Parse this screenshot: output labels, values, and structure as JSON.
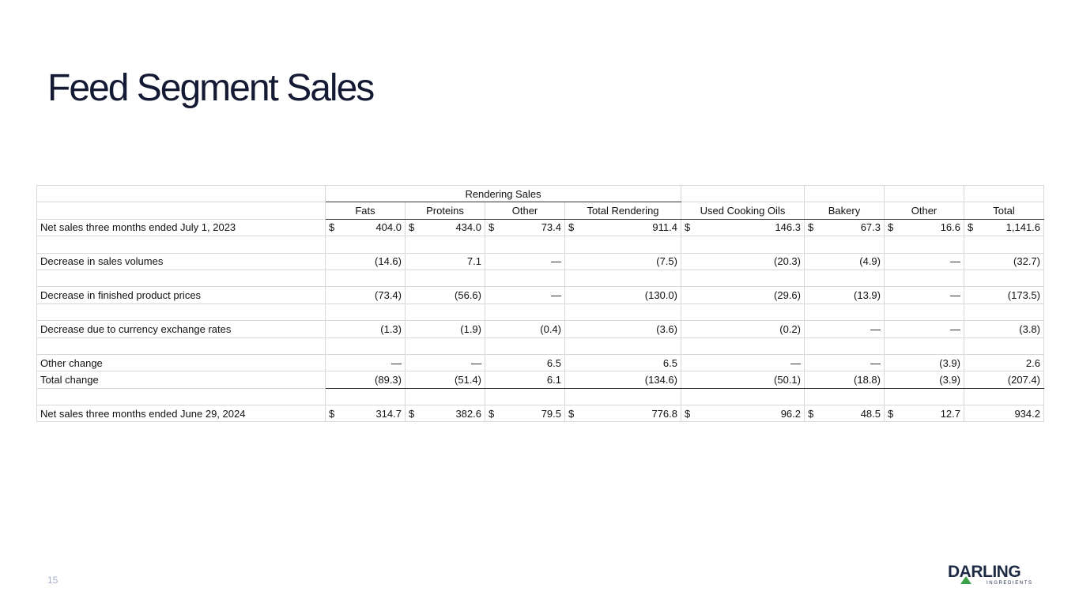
{
  "header": {
    "title": "Feed Segment Sales"
  },
  "table": {
    "group_header": "Rendering Sales",
    "columns": [
      "Fats",
      "Proteins",
      "Other",
      "Total Rendering",
      "Used Cooking Oils",
      "Bakery",
      "Other",
      "Total"
    ],
    "rows": [
      {
        "label": "Net sales three months ended July 1, 2023",
        "cells": [
          {
            "symbol": "$",
            "amount": "404.0"
          },
          {
            "symbol": "$",
            "amount": "434.0"
          },
          {
            "symbol": "$",
            "amount": "73.4"
          },
          {
            "symbol": "$",
            "amount": "911.4"
          },
          {
            "symbol": "$",
            "amount": "146.3"
          },
          {
            "symbol": "$",
            "amount": "67.3"
          },
          {
            "symbol": "$",
            "amount": "16.6"
          },
          {
            "symbol": "$",
            "amount": "1,141.6"
          }
        ]
      },
      {
        "label": "Decrease in sales volumes",
        "cells": [
          "(14.6)",
          "7.1",
          "—",
          "(7.5)",
          "(20.3)",
          "(4.9)",
          "—",
          "(32.7)"
        ]
      },
      {
        "label": "Decrease in finished product prices",
        "cells": [
          "(73.4)",
          "(56.6)",
          "—",
          "(130.0)",
          "(29.6)",
          "(13.9)",
          "—",
          "(173.5)"
        ]
      },
      {
        "label": "Decrease due to currency exchange rates",
        "cells": [
          "(1.3)",
          "(1.9)",
          "(0.4)",
          "(3.6)",
          "(0.2)",
          "—",
          "—",
          "(3.8)"
        ]
      },
      {
        "label": "Other change",
        "cells": [
          "—",
          "—",
          "6.5",
          "6.5",
          "—",
          "—",
          "(3.9)",
          "2.6"
        ]
      },
      {
        "label": "Total change",
        "cells": [
          "(89.3)",
          "(51.4)",
          "6.1",
          "(134.6)",
          "(50.1)",
          "(18.8)",
          "(3.9)",
          "(207.4)"
        ]
      },
      {
        "label": "Net sales three months ended June 29, 2024",
        "cells": [
          {
            "symbol": "$",
            "amount": "314.7"
          },
          {
            "symbol": "$",
            "amount": "382.6"
          },
          {
            "symbol": "$",
            "amount": "79.5"
          },
          {
            "symbol": "$",
            "amount": "776.8"
          },
          {
            "symbol": "$",
            "amount": "96.2"
          },
          {
            "symbol": "$",
            "amount": "48.5"
          },
          {
            "symbol": "$",
            "amount": "12.7"
          },
          "934.2"
        ]
      }
    ]
  },
  "footer": {
    "page_number": "15",
    "logo": {
      "name": "DARLING",
      "tagline": "INGREDIENTS"
    }
  }
}
